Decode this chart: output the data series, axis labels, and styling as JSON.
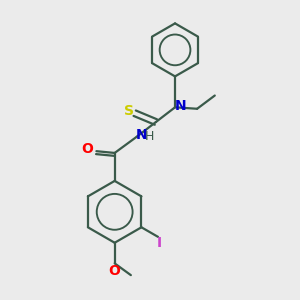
{
  "bg_color": "#ebebeb",
  "bond_color": "#3a5a4a",
  "atom_colors": {
    "O_carbonyl": "#ff0000",
    "O_methoxy": "#ff0000",
    "N_NH": "#0000cc",
    "N_tertiary": "#0000cc",
    "S": "#cccc00",
    "I": "#cc44cc"
  },
  "font_size": 9,
  "line_width": 1.6,
  "figsize": [
    3.0,
    3.0
  ],
  "dpi": 100,
  "xlim": [
    0,
    10
  ],
  "ylim": [
    0,
    10
  ]
}
